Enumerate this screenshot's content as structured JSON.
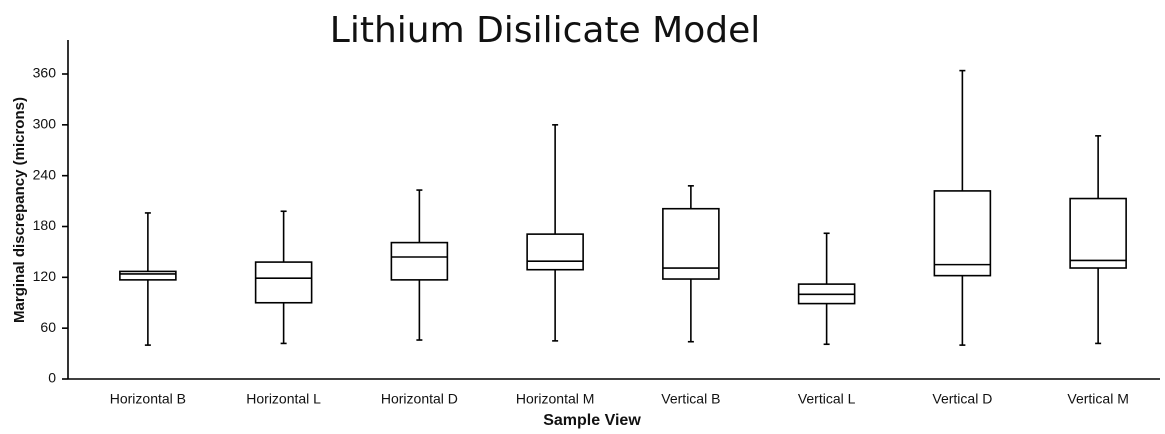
{
  "chart_data": {
    "type": "box",
    "title": "Lithium Disilicate Model",
    "x_label": "Sample View",
    "y_label": "Marginal discrepancy (microns)",
    "categories": [
      "Horizontal B",
      "Horizontal L",
      "Horizontal D",
      "Horizontal M",
      "Vertical B",
      "Vertical L",
      "Vertical D",
      "Vertical M"
    ],
    "boxes": [
      {
        "min": 40,
        "q1": 117,
        "median": 124,
        "q3": 127,
        "max": 196
      },
      {
        "min": 42,
        "q1": 90,
        "median": 119,
        "q3": 138,
        "max": 198
      },
      {
        "min": 46,
        "q1": 117,
        "median": 144,
        "q3": 161,
        "max": 223
      },
      {
        "min": 45,
        "q1": 129,
        "median": 139,
        "q3": 171,
        "max": 300
      },
      {
        "min": 44,
        "q1": 118,
        "median": 131,
        "q3": 201,
        "max": 228
      },
      {
        "min": 41,
        "q1": 89,
        "median": 100,
        "q3": 112,
        "max": 172
      },
      {
        "min": 40,
        "q1": 122,
        "median": 135,
        "q3": 222,
        "max": 364
      },
      {
        "min": 42,
        "q1": 131,
        "median": 140,
        "q3": 213,
        "max": 287
      }
    ],
    "color": "#ffffff",
    "ylim": [
      0,
      360
    ],
    "yticks": [
      0,
      60,
      120,
      180,
      240,
      300,
      360
    ],
    "grid": false
  }
}
